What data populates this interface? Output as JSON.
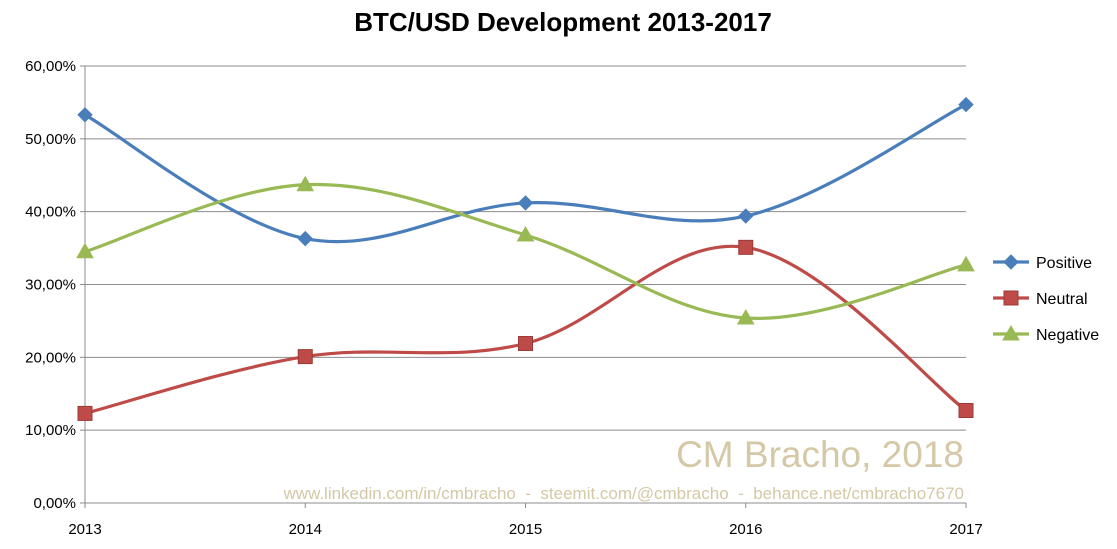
{
  "chart_data": {
    "type": "line",
    "title": "BTC/USD Development 2013-2017",
    "xlabel": "",
    "ylabel": "",
    "categories": [
      "2013",
      "2014",
      "2015",
      "2016",
      "2017"
    ],
    "ylim": [
      0,
      60
    ],
    "yticks": [
      "0,00%",
      "10,00%",
      "20,00%",
      "30,00%",
      "40,00%",
      "50,00%",
      "60,00%"
    ],
    "grid": true,
    "smooth": true,
    "legend_position": "right",
    "series": [
      {
        "name": "Positive",
        "color": "#4a7ebb",
        "marker": "diamond",
        "values": [
          53.3,
          36.3,
          41.2,
          39.4,
          54.7
        ]
      },
      {
        "name": "Neutral",
        "color": "#be4b48",
        "marker": "square",
        "values": [
          12.3,
          20.1,
          21.9,
          35.1,
          12.7
        ]
      },
      {
        "name": "Negative",
        "color": "#98b954",
        "marker": "triangle",
        "values": [
          34.5,
          43.7,
          36.8,
          25.4,
          32.7
        ]
      }
    ]
  },
  "watermark": {
    "author": "CM Bracho, 2018",
    "links": "www.linkedin.com/in/cmbracho  -  steemit.com/@cmbracho  -  behance.net/cmbracho7670"
  }
}
